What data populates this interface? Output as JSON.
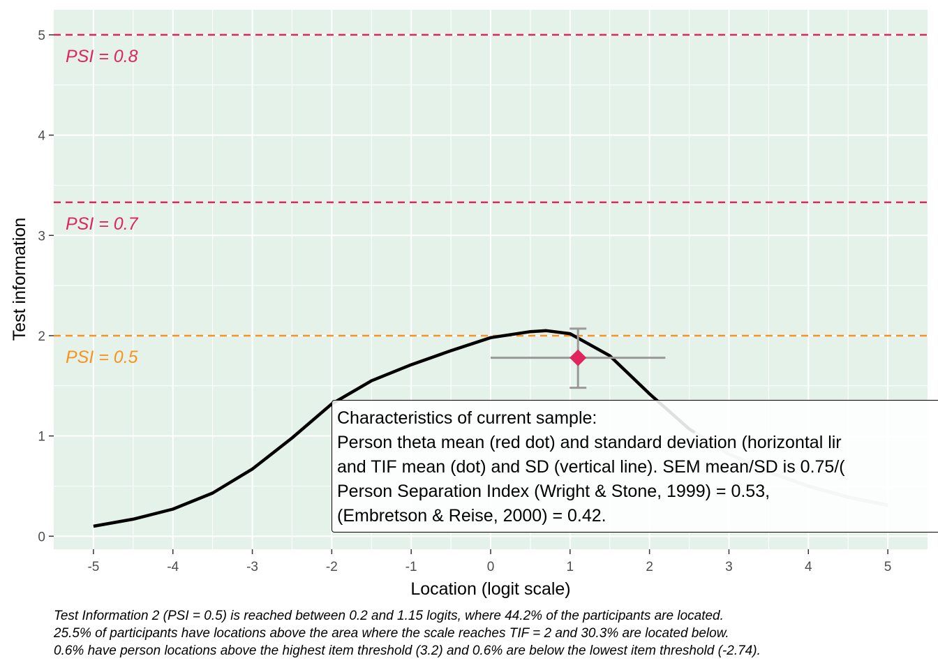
{
  "chart_data": {
    "type": "line",
    "xlabel": "Location (logit scale)",
    "ylabel": "Test information",
    "xlim": [
      -5.5,
      5.5
    ],
    "ylim": [
      -0.13,
      5.25
    ],
    "x_ticks": [
      "-5",
      "-4",
      "-3",
      "-2",
      "-1",
      "0",
      "1",
      "2",
      "3",
      "4",
      "5"
    ],
    "y_ticks": [
      "0",
      "1",
      "2",
      "3",
      "4",
      "5"
    ],
    "grid": true,
    "background_color": "#e5f2ea",
    "series": [
      {
        "color": "#000000",
        "highlight_color": "#b3b3b3",
        "highlight_range": [
          2.57,
          5
        ],
        "x": [
          -5,
          -4.5,
          -4,
          -3.5,
          -3,
          -2.5,
          -2,
          -1.5,
          -1,
          -0.5,
          0,
          0.5,
          0.7,
          1,
          1.5,
          2,
          2.5,
          3,
          3.5,
          4,
          4.5,
          5
        ],
        "y": [
          0.1,
          0.17,
          0.27,
          0.43,
          0.67,
          0.98,
          1.32,
          1.55,
          1.71,
          1.85,
          1.98,
          2.04,
          2.05,
          2.02,
          1.8,
          1.42,
          1.07,
          0.82,
          0.64,
          0.5,
          0.39,
          0.31
        ]
      }
    ],
    "reference_lines": [
      {
        "y": 5,
        "color": "#e0245e",
        "label": "PSI = 0.8"
      },
      {
        "y": 3.33,
        "color": "#e0245e",
        "label": "PSI = 0.7"
      },
      {
        "y": 2,
        "color": "#f7931e",
        "label": "PSI = 0.5"
      }
    ],
    "point": {
      "x": 1.1,
      "y": 1.78,
      "color": "#e0245e",
      "x_err": [
        0,
        2.2
      ],
      "y_err": [
        1.48,
        2.07
      ],
      "err_color": "#999999"
    },
    "annotation": [
      "Characteristics of current sample:",
      "Person theta mean (red dot) and standard deviation (horizontal lir",
      "and TIF mean (dot) and SD (vertical line). SEM mean/SD is 0.75/(",
      "Person Separation Index (Wright & Stone, 1999) = 0.53,",
      "(Embretson & Reise, 2000) = 0.42."
    ],
    "caption": [
      "Test Information 2 (PSI = 0.5) is reached between 0.2 and 1.15 logits, where 44.2% of the participants are located.",
      "25.5% of participants have locations above the area where the scale reaches TIF = 2 and 30.3% are located below.",
      "0.6% have person locations above the highest item threshold (3.2) and 0.6% are below the lowest item threshold (-2.74)."
    ]
  }
}
